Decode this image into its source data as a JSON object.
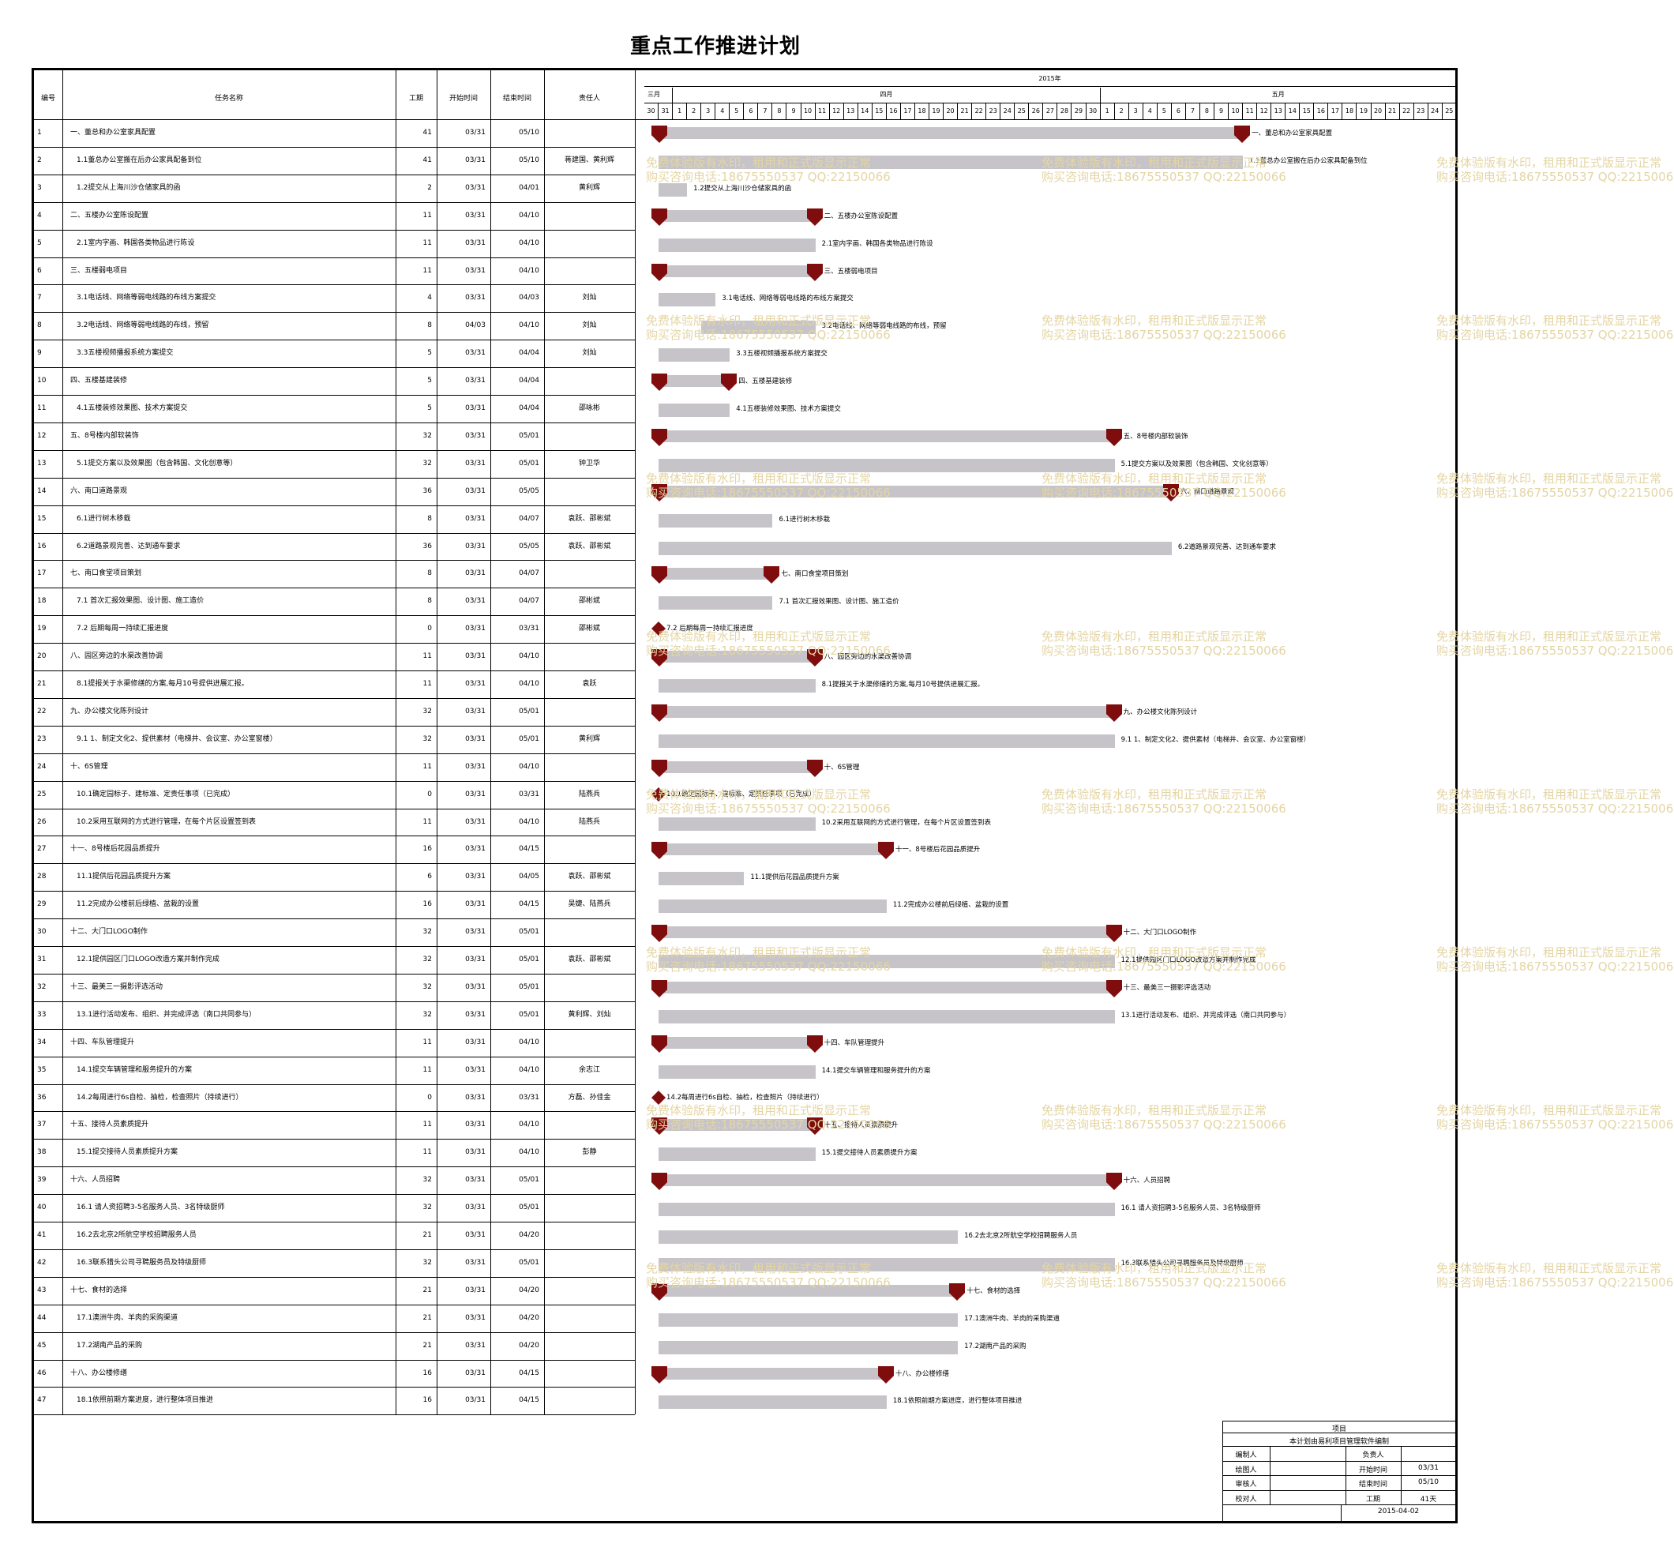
{
  "title": "重点工作推进计划",
  "headers": {
    "id": "编号",
    "name": "任务名称",
    "duration": "工期",
    "start": "开始时间",
    "end": "结束时间",
    "owner": "责任人"
  },
  "timeline": {
    "year": "2015年",
    "months": [
      {
        "label": "三月",
        "days": [
          "30",
          "31"
        ]
      },
      {
        "label": "四月",
        "days": [
          "1",
          "2",
          "3",
          "4",
          "5",
          "6",
          "7",
          "8",
          "9",
          "10",
          "11",
          "12",
          "13",
          "14",
          "15",
          "16",
          "17",
          "18",
          "19",
          "20",
          "21",
          "22",
          "23",
          "24",
          "25",
          "26",
          "27",
          "28",
          "29",
          "30"
        ]
      },
      {
        "label": "五月",
        "days": [
          "1",
          "2",
          "3",
          "4",
          "5",
          "6",
          "7",
          "8",
          "9",
          "10",
          "11",
          "12",
          "13",
          "14",
          "15",
          "16",
          "17",
          "18",
          "19",
          "20",
          "21",
          "22",
          "23",
          "24",
          "25"
        ]
      }
    ]
  },
  "tasks": [
    {
      "id": "1",
      "name": "一、董总和办公室家具配置",
      "duration": "41",
      "start": "03/31",
      "end": "05/10",
      "owner": "",
      "summary": true
    },
    {
      "id": "2",
      "name": "1.1董总办公室搬在后办公家具配备到位",
      "duration": "41",
      "start": "03/31",
      "end": "05/10",
      "owner": "蒋建国、黄利辉",
      "summary": false
    },
    {
      "id": "3",
      "name": "1.2提交从上海川沙仓储家具的函",
      "duration": "2",
      "start": "03/31",
      "end": "04/01",
      "owner": "黄利辉",
      "summary": false
    },
    {
      "id": "4",
      "name": "二、五楼办公室陈设配置",
      "duration": "11",
      "start": "03/31",
      "end": "04/10",
      "owner": "",
      "summary": true
    },
    {
      "id": "5",
      "name": "2.1室内字画、韩国各类物品进行陈设",
      "duration": "11",
      "start": "03/31",
      "end": "04/10",
      "owner": "",
      "summary": false
    },
    {
      "id": "6",
      "name": "三、五楼弱电项目",
      "duration": "11",
      "start": "03/31",
      "end": "04/10",
      "owner": "",
      "summary": true
    },
    {
      "id": "7",
      "name": "3.1电话线、网络等弱电线路的布线方案提交",
      "duration": "4",
      "start": "03/31",
      "end": "04/03",
      "owner": "刘灿",
      "summary": false
    },
    {
      "id": "8",
      "name": "3.2电话线、网络等弱电线路的布线，预留",
      "duration": "8",
      "start": "04/03",
      "end": "04/10",
      "owner": "刘灿",
      "summary": false
    },
    {
      "id": "9",
      "name": "3.3五楼视频播报系统方案提交",
      "duration": "5",
      "start": "03/31",
      "end": "04/04",
      "owner": "刘灿",
      "summary": false
    },
    {
      "id": "10",
      "name": "四、五楼基建装修",
      "duration": "5",
      "start": "03/31",
      "end": "04/04",
      "owner": "",
      "summary": true
    },
    {
      "id": "11",
      "name": "4.1五楼装修效果图、技术方案提交",
      "duration": "5",
      "start": "03/31",
      "end": "04/04",
      "owner": "邵咏彬",
      "summary": false
    },
    {
      "id": "12",
      "name": "五、8号楼内部软装饰",
      "duration": "32",
      "start": "03/31",
      "end": "05/01",
      "owner": "",
      "summary": true
    },
    {
      "id": "13",
      "name": "5.1提交方案以及效果图（包含韩国、文化创意等）",
      "duration": "32",
      "start": "03/31",
      "end": "05/01",
      "owner": "钟卫华",
      "summary": false
    },
    {
      "id": "14",
      "name": "六、南口道路景观",
      "duration": "36",
      "start": "03/31",
      "end": "05/05",
      "owner": "",
      "summary": true
    },
    {
      "id": "15",
      "name": "6.1进行树木移栽",
      "duration": "8",
      "start": "03/31",
      "end": "04/07",
      "owner": "袁跃、邵彬斌",
      "summary": false
    },
    {
      "id": "16",
      "name": "6.2道路景观完善、达到通车要求",
      "duration": "36",
      "start": "03/31",
      "end": "05/05",
      "owner": "袁跃、邵彬斌",
      "summary": false
    },
    {
      "id": "17",
      "name": "七、南口食堂项目策划",
      "duration": "8",
      "start": "03/31",
      "end": "04/07",
      "owner": "",
      "summary": true
    },
    {
      "id": "18",
      "name": "7.1 首次汇报效果图、设计图、施工造价",
      "duration": "8",
      "start": "03/31",
      "end": "04/07",
      "owner": "邵彬斌",
      "summary": false
    },
    {
      "id": "19",
      "name": "7.2 后期每周一持续汇报进度",
      "duration": "0",
      "start": "03/31",
      "end": "03/31",
      "owner": "邵彬斌",
      "summary": false
    },
    {
      "id": "20",
      "name": "八、园区旁边的水渠改善协调",
      "duration": "11",
      "start": "03/31",
      "end": "04/10",
      "owner": "",
      "summary": true
    },
    {
      "id": "21",
      "name": "8.1提报关于水渠修缮的方案,每月10号提供进展汇报。",
      "duration": "11",
      "start": "03/31",
      "end": "04/10",
      "owner": "袁跃",
      "summary": false
    },
    {
      "id": "22",
      "name": "九、办公楼文化陈列设计",
      "duration": "32",
      "start": "03/31",
      "end": "05/01",
      "owner": "",
      "summary": true
    },
    {
      "id": "23",
      "name": "9.1 1、制定文化2、提供素材（电梯井、会议室、办公室窗楼）",
      "duration": "32",
      "start": "03/31",
      "end": "05/01",
      "owner": "黄利辉",
      "summary": false
    },
    {
      "id": "24",
      "name": "十、6S管理",
      "duration": "11",
      "start": "03/31",
      "end": "04/10",
      "owner": "",
      "summary": true
    },
    {
      "id": "25",
      "name": "10.1确定园标子、建标准、定责任事项（已完成）",
      "duration": "0",
      "start": "03/31",
      "end": "03/31",
      "owner": "陆燕兵",
      "summary": false
    },
    {
      "id": "26",
      "name": "10.2采用互联网的方式进行管理，在每个片区设置签到表",
      "duration": "11",
      "start": "03/31",
      "end": "04/10",
      "owner": "陆燕兵",
      "summary": false
    },
    {
      "id": "27",
      "name": "十一、8号楼后花园品质提升",
      "duration": "16",
      "start": "03/31",
      "end": "04/15",
      "owner": "",
      "summary": true
    },
    {
      "id": "28",
      "name": "11.1提供后花园品质提升方案",
      "duration": "6",
      "start": "03/31",
      "end": "04/05",
      "owner": "袁跃、邵彬斌",
      "summary": false
    },
    {
      "id": "29",
      "name": "11.2完成办公楼前后绿植、盆栽的设置",
      "duration": "16",
      "start": "03/31",
      "end": "04/15",
      "owner": "吴婕、陆燕兵",
      "summary": false
    },
    {
      "id": "30",
      "name": "十二、大门口LOGO制作",
      "duration": "32",
      "start": "03/31",
      "end": "05/01",
      "owner": "",
      "summary": true
    },
    {
      "id": "31",
      "name": "12.1提供园区门口LOGO改造方案并制作完成",
      "duration": "32",
      "start": "03/31",
      "end": "05/01",
      "owner": "袁跃、邵彬斌",
      "summary": false
    },
    {
      "id": "32",
      "name": "十三、最美三一摄影评选活动",
      "duration": "32",
      "start": "03/31",
      "end": "05/01",
      "owner": "",
      "summary": true
    },
    {
      "id": "33",
      "name": "13.1进行活动发布、组织、并完成评选（南口共同参与）",
      "duration": "32",
      "start": "03/31",
      "end": "05/01",
      "owner": "黄利辉、刘灿",
      "summary": false
    },
    {
      "id": "34",
      "name": "十四、车队管理提升",
      "duration": "11",
      "start": "03/31",
      "end": "04/10",
      "owner": "",
      "summary": true
    },
    {
      "id": "35",
      "name": "14.1提交车辆管理和服务提升的方案",
      "duration": "11",
      "start": "03/31",
      "end": "04/10",
      "owner": "余志江",
      "summary": false
    },
    {
      "id": "36",
      "name": "14.2每周进行6s自检、抽检，检查照片（持续进行）",
      "duration": "0",
      "start": "03/31",
      "end": "03/31",
      "owner": "方磊、孙佳金",
      "summary": false
    },
    {
      "id": "37",
      "name": "十五、接待人员素质提升",
      "duration": "11",
      "start": "03/31",
      "end": "04/10",
      "owner": "",
      "summary": true
    },
    {
      "id": "38",
      "name": "15.1提交接待人员素质提升方案",
      "duration": "11",
      "start": "03/31",
      "end": "04/10",
      "owner": "彭静",
      "summary": false
    },
    {
      "id": "39",
      "name": "十六、人员招聘",
      "duration": "32",
      "start": "03/31",
      "end": "05/01",
      "owner": "",
      "summary": true
    },
    {
      "id": "40",
      "name": "16.1 请人资招聘3-5名服务人员、3名特级厨师",
      "duration": "32",
      "start": "03/31",
      "end": "05/01",
      "owner": "",
      "summary": false
    },
    {
      "id": "41",
      "name": "16.2去北京2所航空学校招聘服务人员",
      "duration": "21",
      "start": "03/31",
      "end": "04/20",
      "owner": "",
      "summary": false
    },
    {
      "id": "42",
      "name": "16.3联系猎头公司寻聘服务员及特级厨师",
      "duration": "32",
      "start": "03/31",
      "end": "05/01",
      "owner": "",
      "summary": false
    },
    {
      "id": "43",
      "name": "十七、食材的选择",
      "duration": "21",
      "start": "03/31",
      "end": "04/20",
      "owner": "",
      "summary": true
    },
    {
      "id": "44",
      "name": "17.1澳洲牛肉、羊肉的采购渠道",
      "duration": "21",
      "start": "03/31",
      "end": "04/20",
      "owner": "",
      "summary": false
    },
    {
      "id": "45",
      "name": "17.2湖南产品的采购",
      "duration": "21",
      "start": "03/31",
      "end": "04/20",
      "owner": "",
      "summary": false
    },
    {
      "id": "46",
      "name": "十八、办公楼修缮",
      "duration": "16",
      "start": "03/31",
      "end": "04/15",
      "owner": "",
      "summary": true
    },
    {
      "id": "47",
      "name": "18.1依照前期方案进度，进行整体项目推进",
      "duration": "16",
      "start": "03/31",
      "end": "04/15",
      "owner": "",
      "summary": false
    }
  ],
  "info": {
    "project_label": "项目",
    "note": "本计划由易利项目管理软件编制",
    "rows": [
      {
        "k1": "编制人",
        "v1": "",
        "k2": "负责人",
        "v2": ""
      },
      {
        "k1": "绘图人",
        "v1": "",
        "k2": "开始时间",
        "v2": "03/31"
      },
      {
        "k1": "审核人",
        "v1": "",
        "k2": "结束时间",
        "v2": "05/10"
      },
      {
        "k1": "校对人",
        "v1": "",
        "k2": "工期",
        "v2": "41天"
      }
    ],
    "date": "2015-04-02"
  },
  "watermark": {
    "line1": "免费体验版有水印，租用和正式版显示正常",
    "line2": "购买咨询电话:18675550537 QQ:22150066"
  },
  "colors": {
    "bar": "#c6c4c8",
    "milestone": "#7f0d0d",
    "watermark": "#e4d5a4"
  }
}
